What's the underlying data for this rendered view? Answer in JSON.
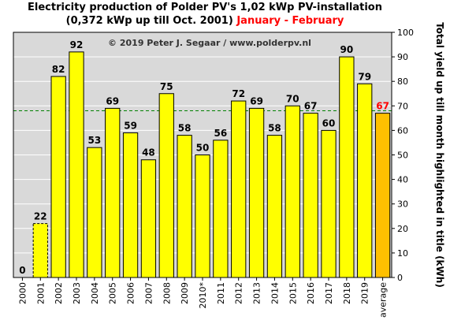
{
  "chart_data": {
    "type": "bar",
    "title": "Electricity production  of Polder PV's 1,02 kWp PV-installation",
    "subtitle_main": "(0,372 kWp up till Oct. 2001)",
    "subtitle_highlight": "January - February",
    "watermark": "© 2019 Peter J. Segaar / www.polderpv.nl",
    "ylabel": "Total yield up till month highlighted in title (kWh)",
    "xlabel": "",
    "ylim": [
      0,
      100
    ],
    "yticks": [
      0,
      10,
      20,
      30,
      40,
      50,
      60,
      70,
      80,
      90,
      100
    ],
    "grid": true,
    "average_line": 68,
    "categories": [
      "2000",
      "2001",
      "2002",
      "2003",
      "2004",
      "2005",
      "2006",
      "2007",
      "2008",
      "2009",
      "2010*",
      "2011",
      "2012",
      "2013",
      "2014",
      "2015",
      "2016",
      "2017",
      "2018",
      "2019",
      "average"
    ],
    "values": [
      0,
      22,
      82,
      92,
      53,
      69,
      59,
      48,
      75,
      58,
      50,
      56,
      72,
      69,
      58,
      70,
      67,
      60,
      90,
      79,
      67
    ],
    "value_labels": [
      "0",
      "22",
      "82",
      "92",
      "53",
      "69",
      "59",
      "48",
      "75",
      "58",
      "50",
      "56",
      "72",
      "69",
      "58",
      "70",
      "67",
      "60",
      "90",
      "79",
      "67"
    ],
    "colors": {
      "bar": "#ffff00",
      "bar_partial": "#ffff00",
      "average_bar": "#ffc000",
      "average_label": "#ff0000",
      "plot_bg": "#d9d9d9",
      "grid": "#ffffff",
      "average_line": "#008000",
      "highlight": "#ff0000"
    },
    "partial_bar": "2001"
  }
}
